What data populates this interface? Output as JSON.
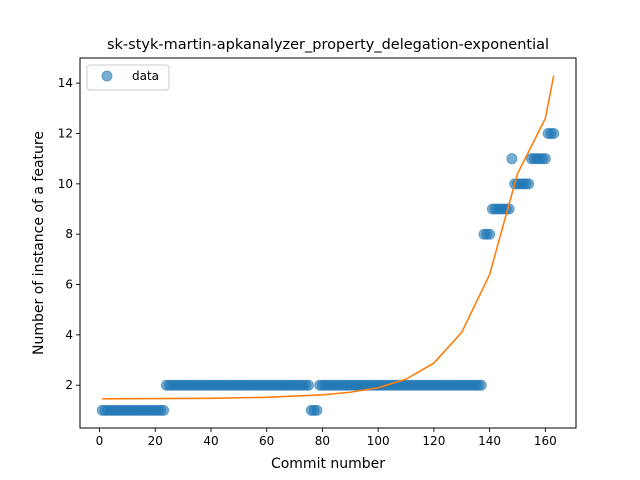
{
  "chart_data": {
    "type": "scatter",
    "title": "sk-styk-martin-apkanalyzer_property_delegation-exponential",
    "xlabel": "Commit number",
    "ylabel": "Number of instance of a feature",
    "xlim": [
      -7,
      171
    ],
    "ylim": [
      0.3,
      15
    ],
    "xticks": [
      0,
      20,
      40,
      60,
      80,
      100,
      120,
      140,
      160
    ],
    "yticks": [
      2,
      4,
      6,
      8,
      10,
      12,
      14
    ],
    "grid": false,
    "legend": {
      "placement": "top-left",
      "entries": [
        "data"
      ]
    },
    "colors": {
      "data": "#1f77b4",
      "fit": "#ff7f0e"
    },
    "series": [
      {
        "name": "data",
        "kind": "scatter",
        "points": [
          [
            1,
            1
          ],
          [
            2,
            1
          ],
          [
            3,
            1
          ],
          [
            4,
            1
          ],
          [
            5,
            1
          ],
          [
            6,
            1
          ],
          [
            7,
            1
          ],
          [
            8,
            1
          ],
          [
            9,
            1
          ],
          [
            10,
            1
          ],
          [
            11,
            1
          ],
          [
            12,
            1
          ],
          [
            13,
            1
          ],
          [
            14,
            1
          ],
          [
            15,
            1
          ],
          [
            16,
            1
          ],
          [
            17,
            1
          ],
          [
            18,
            1
          ],
          [
            19,
            1
          ],
          [
            20,
            1
          ],
          [
            21,
            1
          ],
          [
            22,
            1
          ],
          [
            23,
            1
          ],
          [
            24,
            2
          ],
          [
            25,
            2
          ],
          [
            26,
            2
          ],
          [
            27,
            2
          ],
          [
            28,
            2
          ],
          [
            29,
            2
          ],
          [
            30,
            2
          ],
          [
            31,
            2
          ],
          [
            32,
            2
          ],
          [
            33,
            2
          ],
          [
            34,
            2
          ],
          [
            35,
            2
          ],
          [
            36,
            2
          ],
          [
            37,
            2
          ],
          [
            38,
            2
          ],
          [
            39,
            2
          ],
          [
            40,
            2
          ],
          [
            41,
            2
          ],
          [
            42,
            2
          ],
          [
            43,
            2
          ],
          [
            44,
            2
          ],
          [
            45,
            2
          ],
          [
            46,
            2
          ],
          [
            47,
            2
          ],
          [
            48,
            2
          ],
          [
            49,
            2
          ],
          [
            50,
            2
          ],
          [
            51,
            2
          ],
          [
            52,
            2
          ],
          [
            53,
            2
          ],
          [
            54,
            2
          ],
          [
            55,
            2
          ],
          [
            56,
            2
          ],
          [
            57,
            2
          ],
          [
            58,
            2
          ],
          [
            59,
            2
          ],
          [
            60,
            2
          ],
          [
            61,
            2
          ],
          [
            62,
            2
          ],
          [
            63,
            2
          ],
          [
            64,
            2
          ],
          [
            65,
            2
          ],
          [
            66,
            2
          ],
          [
            67,
            2
          ],
          [
            68,
            2
          ],
          [
            69,
            2
          ],
          [
            70,
            2
          ],
          [
            71,
            2
          ],
          [
            72,
            2
          ],
          [
            73,
            2
          ],
          [
            74,
            2
          ],
          [
            75,
            2
          ],
          [
            76,
            1
          ],
          [
            77,
            1
          ],
          [
            78,
            1
          ],
          [
            79,
            2
          ],
          [
            80,
            2
          ],
          [
            81,
            2
          ],
          [
            82,
            2
          ],
          [
            83,
            2
          ],
          [
            84,
            2
          ],
          [
            85,
            2
          ],
          [
            86,
            2
          ],
          [
            87,
            2
          ],
          [
            88,
            2
          ],
          [
            89,
            2
          ],
          [
            90,
            2
          ],
          [
            91,
            2
          ],
          [
            92,
            2
          ],
          [
            93,
            2
          ],
          [
            94,
            2
          ],
          [
            95,
            2
          ],
          [
            96,
            2
          ],
          [
            97,
            2
          ],
          [
            98,
            2
          ],
          [
            99,
            2
          ],
          [
            100,
            2
          ],
          [
            101,
            2
          ],
          [
            102,
            2
          ],
          [
            103,
            2
          ],
          [
            104,
            2
          ],
          [
            105,
            2
          ],
          [
            106,
            2
          ],
          [
            107,
            2
          ],
          [
            108,
            2
          ],
          [
            109,
            2
          ],
          [
            110,
            2
          ],
          [
            111,
            2
          ],
          [
            112,
            2
          ],
          [
            113,
            2
          ],
          [
            114,
            2
          ],
          [
            115,
            2
          ],
          [
            116,
            2
          ],
          [
            117,
            2
          ],
          [
            118,
            2
          ],
          [
            119,
            2
          ],
          [
            120,
            2
          ],
          [
            121,
            2
          ],
          [
            122,
            2
          ],
          [
            123,
            2
          ],
          [
            124,
            2
          ],
          [
            125,
            2
          ],
          [
            126,
            2
          ],
          [
            127,
            2
          ],
          [
            128,
            2
          ],
          [
            129,
            2
          ],
          [
            130,
            2
          ],
          [
            131,
            2
          ],
          [
            132,
            2
          ],
          [
            133,
            2
          ],
          [
            134,
            2
          ],
          [
            135,
            2
          ],
          [
            136,
            2
          ],
          [
            137,
            2
          ],
          [
            138,
            8
          ],
          [
            139,
            8
          ],
          [
            140,
            8
          ],
          [
            141,
            9
          ],
          [
            142,
            9
          ],
          [
            143,
            9
          ],
          [
            144,
            9
          ],
          [
            145,
            9
          ],
          [
            146,
            9
          ],
          [
            147,
            9
          ],
          [
            148,
            11
          ],
          [
            149,
            10
          ],
          [
            150,
            10
          ],
          [
            151,
            10
          ],
          [
            152,
            10
          ],
          [
            153,
            10
          ],
          [
            154,
            10
          ],
          [
            155,
            11
          ],
          [
            156,
            11
          ],
          [
            157,
            11
          ],
          [
            158,
            11
          ],
          [
            159,
            11
          ],
          [
            160,
            11
          ],
          [
            161,
            12
          ],
          [
            162,
            12
          ],
          [
            163,
            12
          ]
        ]
      },
      {
        "kind": "line",
        "model": "exponential",
        "points": [
          [
            1,
            1.46
          ],
          [
            20,
            1.47
          ],
          [
            40,
            1.48
          ],
          [
            60,
            1.52
          ],
          [
            80,
            1.62
          ],
          [
            90,
            1.72
          ],
          [
            100,
            1.9
          ],
          [
            110,
            2.24
          ],
          [
            120,
            2.88
          ],
          [
            130,
            4.1
          ],
          [
            140,
            6.4
          ],
          [
            150,
            10.4
          ],
          [
            155,
            11.5
          ],
          [
            160,
            12.6
          ],
          [
            163,
            14.3
          ]
        ]
      }
    ]
  }
}
